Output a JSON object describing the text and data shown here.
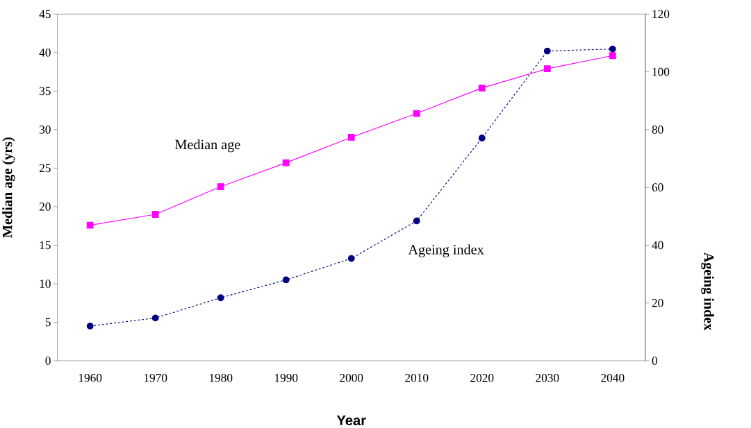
{
  "chart_data": {
    "type": "line",
    "xlabel": "Year",
    "ylabel": "Median age (yrs)",
    "y2label": "Ageing index",
    "categories": [
      "1960",
      "1970",
      "1980",
      "1990",
      "2000",
      "2010",
      "2020",
      "2030",
      "2040"
    ],
    "ylim": [
      0,
      45
    ],
    "yticks": [
      0,
      5,
      10,
      15,
      20,
      25,
      30,
      35,
      40,
      45
    ],
    "y2lim": [
      0,
      120
    ],
    "y2ticks": [
      0,
      20,
      40,
      60,
      80,
      100,
      120
    ],
    "series": [
      {
        "name": "Median age",
        "color": "#ff00ff",
        "marker": "square",
        "line_style": "solid",
        "values": [
          17.6,
          19.0,
          22.6,
          25.7,
          29.0,
          32.1,
          35.4,
          37.9,
          39.6
        ]
      },
      {
        "name": "Ageing index",
        "color": "#000080",
        "marker": "circle",
        "line_style": "dashed",
        "axis": "y2",
        "values": [
          12,
          14.8,
          21.8,
          28,
          35.4,
          48.4,
          77.1,
          107.2,
          107.9
        ]
      }
    ]
  }
}
